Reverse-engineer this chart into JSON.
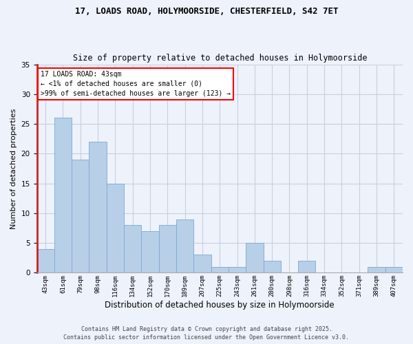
{
  "title1": "17, LOADS ROAD, HOLYMOORSIDE, CHESTERFIELD, S42 7ET",
  "title2": "Size of property relative to detached houses in Holymoorside",
  "xlabel": "Distribution of detached houses by size in Holymoorside",
  "ylabel": "Number of detached properties",
  "categories": [
    "43sqm",
    "61sqm",
    "79sqm",
    "98sqm",
    "116sqm",
    "134sqm",
    "152sqm",
    "170sqm",
    "189sqm",
    "207sqm",
    "225sqm",
    "243sqm",
    "261sqm",
    "280sqm",
    "298sqm",
    "316sqm",
    "334sqm",
    "352sqm",
    "371sqm",
    "389sqm",
    "407sqm"
  ],
  "values": [
    4,
    26,
    19,
    22,
    15,
    8,
    7,
    8,
    9,
    3,
    1,
    1,
    5,
    2,
    0,
    2,
    0,
    0,
    0,
    1,
    1
  ],
  "bar_color": "#b8cfe8",
  "bar_edge_color": "#7aaad0",
  "highlight_color": "#cc2222",
  "ylim": [
    0,
    35
  ],
  "yticks": [
    0,
    5,
    10,
    15,
    20,
    25,
    30,
    35
  ],
  "annotation_title": "17 LOADS ROAD: 43sqm",
  "annotation_line1": "← <1% of detached houses are smaller (0)",
  "annotation_line2": ">99% of semi-detached houses are larger (123) →",
  "footer1": "Contains HM Land Registry data © Crown copyright and database right 2025.",
  "footer2": "Contains public sector information licensed under the Open Government Licence v3.0.",
  "background_color": "#eef2fb",
  "grid_color": "#c8cfe0"
}
